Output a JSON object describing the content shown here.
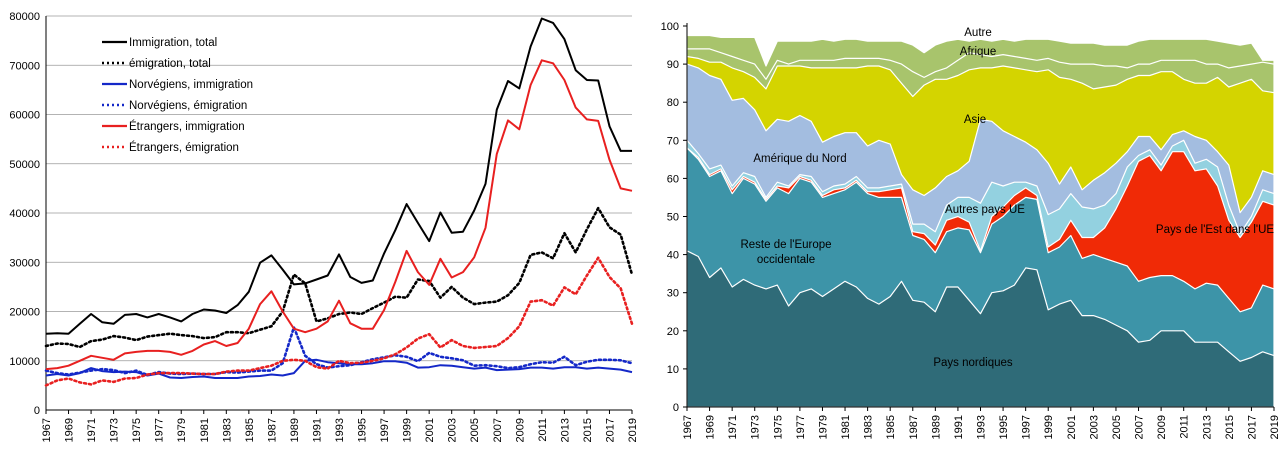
{
  "chart_data": [
    {
      "type": "line",
      "x": [
        1967,
        1968,
        1969,
        1970,
        1971,
        1972,
        1973,
        1974,
        1975,
        1976,
        1977,
        1978,
        1979,
        1980,
        1981,
        1982,
        1983,
        1984,
        1985,
        1986,
        1987,
        1988,
        1989,
        1990,
        1991,
        1992,
        1993,
        1994,
        1995,
        1996,
        1997,
        1998,
        1999,
        2000,
        2001,
        2002,
        2003,
        2004,
        2005,
        2006,
        2007,
        2008,
        2009,
        2010,
        2011,
        2012,
        2013,
        2014,
        2015,
        2016,
        2017,
        2018,
        2019
      ],
      "xticks": [
        "1967",
        "1969",
        "1971",
        "1973",
        "1975",
        "1977",
        "1979",
        "1981",
        "1983",
        "1985",
        "1987",
        "1989",
        "1991",
        "1993",
        "1995",
        "1997",
        "1999",
        "2001",
        "2003",
        "2005",
        "2007",
        "2009",
        "2011",
        "2013",
        "2015",
        "2017",
        "2019"
      ],
      "ylim": [
        0,
        80000
      ],
      "yticks": [
        "0",
        "10000",
        "20000",
        "30000",
        "40000",
        "50000",
        "60000",
        "70000",
        "80000"
      ],
      "grid": "horizontal",
      "legend_position": "top-left",
      "series": [
        {
          "name": "Immigration, total",
          "color": "#000000",
          "style": "solid",
          "values": [
            15500,
            15600,
            15500,
            17500,
            19500,
            17800,
            17500,
            19300,
            19500,
            18800,
            19500,
            18800,
            18000,
            19500,
            20400,
            20200,
            19700,
            21300,
            24000,
            29900,
            31400,
            28500,
            25500,
            25700,
            26500,
            27300,
            31600,
            27000,
            25800,
            26300,
            31800,
            36500,
            41800,
            38000,
            34300,
            40100,
            36000,
            36200,
            40500,
            45900,
            61000,
            66800,
            65300,
            73800,
            79500,
            78600,
            75300,
            69000,
            67000,
            66900,
            57600,
            52600,
            52600
          ]
        },
        {
          "name": "émigration, total",
          "color": "#000000",
          "style": "dotted",
          "values": [
            13000,
            13500,
            13400,
            12800,
            14000,
            14300,
            15000,
            14700,
            14200,
            14900,
            15200,
            15500,
            15200,
            15000,
            14600,
            14800,
            15800,
            15800,
            15600,
            16300,
            17000,
            20000,
            27500,
            25700,
            18000,
            18600,
            19500,
            19800,
            19500,
            20700,
            21800,
            23000,
            22800,
            26500,
            26200,
            22800,
            25000,
            22800,
            21500,
            21800,
            22000,
            23300,
            25800,
            31500,
            32000,
            30800,
            35900,
            32000,
            36700,
            41000,
            37100,
            35600,
            27500
          ]
        },
        {
          "name": "Norvégiens, immigration",
          "color": "#1428c8",
          "style": "solid",
          "values": [
            7000,
            7300,
            7000,
            7500,
            8500,
            7900,
            7700,
            7800,
            7700,
            7000,
            7400,
            6600,
            6500,
            6700,
            6800,
            6500,
            6500,
            6500,
            6800,
            6900,
            7200,
            7000,
            7500,
            10000,
            10200,
            9700,
            9500,
            9300,
            9300,
            9500,
            9900,
            9900,
            9600,
            8600,
            8700,
            9100,
            9000,
            8700,
            8400,
            8600,
            8100,
            8200,
            8300,
            8600,
            8600,
            8400,
            8700,
            8700,
            8400,
            8600,
            8400,
            8200,
            7700
          ]
        },
        {
          "name": "Norvégiens, émigration",
          "color": "#1428c8",
          "style": "dotted",
          "values": [
            8000,
            7500,
            7200,
            7600,
            8000,
            8300,
            8100,
            7500,
            8000,
            7100,
            7700,
            7400,
            7300,
            7400,
            7300,
            7300,
            7700,
            7600,
            7800,
            8000,
            8000,
            9500,
            16800,
            11000,
            9300,
            8600,
            8900,
            9100,
            9700,
            10300,
            10700,
            11100,
            10800,
            9900,
            11600,
            10800,
            10500,
            10100,
            9000,
            9100,
            8900,
            8500,
            8700,
            9300,
            9700,
            9600,
            10800,
            9100,
            9800,
            10200,
            10200,
            10100,
            9500
          ]
        },
        {
          "name": "Étrangers, immigration",
          "color": "#e82020",
          "style": "solid",
          "values": [
            8300,
            8500,
            9000,
            10000,
            11000,
            10600,
            10200,
            11500,
            11800,
            12000,
            12000,
            11800,
            11200,
            12000,
            13300,
            14000,
            13000,
            13600,
            16500,
            21500,
            24100,
            20000,
            16500,
            15800,
            16500,
            18000,
            22200,
            17600,
            16500,
            16500,
            20300,
            26000,
            32300,
            28000,
            25400,
            30700,
            26900,
            28000,
            31000,
            37000,
            52000,
            58800,
            57000,
            66000,
            71000,
            70400,
            67000,
            61400,
            59000,
            58700,
            50800,
            45000,
            44500
          ]
        },
        {
          "name": "Étrangers, émigration",
          "color": "#e82020",
          "style": "dotted",
          "values": [
            5000,
            6000,
            6400,
            5600,
            5200,
            6000,
            5700,
            6400,
            6500,
            7200,
            7500,
            7500,
            7500,
            7400,
            7300,
            7300,
            7800,
            8000,
            8000,
            8500,
            9000,
            10000,
            10200,
            10000,
            8700,
            8400,
            10000,
            9500,
            9600,
            10000,
            10500,
            11300,
            12700,
            14500,
            15400,
            12700,
            14200,
            13000,
            12600,
            12800,
            13000,
            14600,
            17000,
            22000,
            22300,
            21200,
            24900,
            23500,
            27300,
            30900,
            27000,
            24700,
            17500
          ]
        }
      ]
    },
    {
      "type": "area",
      "x": [
        1967,
        1968,
        1969,
        1970,
        1971,
        1972,
        1973,
        1974,
        1975,
        1976,
        1977,
        1978,
        1979,
        1980,
        1981,
        1982,
        1983,
        1984,
        1985,
        1986,
        1987,
        1988,
        1989,
        1990,
        1991,
        1992,
        1993,
        1994,
        1995,
        1996,
        1997,
        1998,
        1999,
        2000,
        2001,
        2002,
        2003,
        2004,
        2005,
        2006,
        2007,
        2008,
        2009,
        2010,
        2011,
        2012,
        2013,
        2014,
        2015,
        2016,
        2017,
        2018,
        2019
      ],
      "xticks": [
        "1967",
        "1969",
        "1971",
        "1973",
        "1975",
        "1977",
        "1979",
        "1981",
        "1983",
        "1985",
        "1987",
        "1989",
        "1991",
        "1993",
        "1995",
        "1997",
        "1999",
        "2001",
        "2003",
        "2005",
        "2007",
        "2009",
        "2011",
        "2013",
        "2015",
        "2017",
        "2019"
      ],
      "ylim": [
        0,
        100
      ],
      "yticks": [
        "0",
        "10",
        "20",
        "30",
        "40",
        "50",
        "60",
        "70",
        "80",
        "90",
        "100"
      ],
      "grid": "off",
      "stacking": "cumulative",
      "series": [
        {
          "name": "Pays nordiques",
          "color": "#2f6b78",
          "values": [
            41,
            39.5,
            34,
            36.5,
            31.5,
            33.5,
            32,
            31,
            32,
            26.5,
            30,
            31,
            29,
            31,
            33,
            31.5,
            28.5,
            27,
            29,
            33,
            28,
            27.5,
            25,
            31.5,
            31.5,
            28,
            24.5,
            30,
            30.5,
            32,
            36.5,
            36,
            25.5,
            27,
            28,
            24,
            24,
            23,
            21.5,
            20,
            17,
            17.5,
            20,
            20,
            20,
            17,
            17,
            17,
            14.5,
            12,
            13,
            14.5,
            13.5
          ]
        },
        {
          "name": "Reste de l'Europe occidentale",
          "color": "#3d94a8",
          "values": [
            68,
            65,
            60.5,
            62,
            56,
            60,
            58.5,
            54,
            57.5,
            56,
            60,
            59,
            55,
            56,
            57,
            59,
            56,
            55,
            55,
            55,
            45,
            44,
            40.5,
            46,
            47,
            46.5,
            40.5,
            48,
            50,
            53,
            55,
            54.5,
            40.5,
            42,
            45,
            39,
            40,
            39,
            38,
            37,
            33,
            34,
            34.5,
            34.5,
            33,
            31,
            32.5,
            32,
            28.5,
            25,
            26,
            32,
            31
          ]
        },
        {
          "name": "Pays de l'Est dans l'UE",
          "color": "#f02a06",
          "values": [
            68,
            65.5,
            61,
            62.5,
            57,
            60.5,
            59,
            54.5,
            58,
            57.5,
            60.5,
            59.5,
            55.5,
            57,
            57.5,
            59.5,
            56.5,
            56.5,
            57,
            57.5,
            46,
            45.5,
            42.5,
            49,
            50,
            48.5,
            41,
            50,
            52.5,
            55.5,
            57.5,
            55.5,
            42,
            44,
            49,
            44.5,
            44.5,
            47,
            52,
            58,
            64.5,
            66,
            62,
            67,
            67,
            62,
            62.5,
            58,
            49,
            44.5,
            48.5,
            54,
            53
          ]
        },
        {
          "name": "Autres pays UE",
          "color": "#93d1e0",
          "values": [
            70,
            66.5,
            62.5,
            63.5,
            58,
            61.5,
            60.5,
            55,
            59,
            58,
            61,
            60.5,
            56.5,
            58,
            58.5,
            60.5,
            57.5,
            57.5,
            58,
            58.5,
            48,
            48,
            46,
            53,
            55,
            55,
            53.5,
            59,
            58,
            59,
            59,
            58,
            50.5,
            52,
            56,
            52.5,
            52,
            53,
            56,
            63,
            66,
            67.5,
            63.5,
            68.5,
            70,
            64,
            65,
            63,
            53,
            45.5,
            50,
            57,
            56
          ]
        },
        {
          "name": "Amérique du Nord",
          "color": "#a3bde0",
          "values": [
            90,
            89,
            87,
            86,
            80.5,
            81,
            78,
            72.5,
            75.5,
            75,
            76.5,
            75,
            69.5,
            71,
            72,
            72,
            68.5,
            70,
            69,
            61,
            57,
            55.5,
            57.5,
            60.5,
            62,
            64.5,
            75.5,
            75,
            72.5,
            71,
            69.5,
            67.5,
            64,
            58.5,
            63,
            57,
            59.5,
            61.5,
            64,
            67,
            71,
            71,
            67.5,
            71.5,
            72.5,
            71,
            70,
            67,
            63.5,
            51,
            55,
            62,
            61
          ]
        },
        {
          "name": "Asie",
          "color": "#d4d400",
          "values": [
            92,
            91.5,
            90.5,
            90.5,
            89,
            88,
            86.5,
            83.5,
            89.5,
            89.5,
            89.5,
            89,
            89,
            89,
            89,
            89,
            89.5,
            89.5,
            88.5,
            85,
            81.5,
            84.5,
            86,
            86,
            87,
            88.5,
            89,
            89,
            89.5,
            89,
            88.5,
            88,
            88.5,
            86.5,
            86,
            85,
            83.5,
            84,
            84.5,
            86,
            87,
            87,
            88,
            88,
            86,
            85,
            85,
            86.5,
            84,
            85,
            86,
            83,
            82.5
          ]
        },
        {
          "name": "Afrique",
          "color": "#a8c46c",
          "values": [
            94,
            94,
            94,
            93,
            92,
            91,
            90,
            86,
            91,
            90,
            91,
            91,
            91,
            91,
            91.5,
            91.5,
            91.5,
            91.5,
            91,
            90,
            88,
            86.5,
            88,
            89,
            91,
            93,
            92.5,
            92,
            92.5,
            92,
            91.5,
            91,
            91.5,
            90.5,
            90,
            90,
            90,
            89.5,
            89.5,
            89,
            90,
            90,
            91,
            91,
            91,
            91,
            90,
            90,
            89,
            89.5,
            90,
            90.5,
            90
          ]
        },
        {
          "name": "Autre",
          "color": "#a8c46c",
          "values": [
            97.5,
            97.5,
            97.5,
            97,
            97,
            97,
            97,
            89.5,
            96,
            96,
            96,
            96,
            96.5,
            96,
            96.5,
            96.5,
            96,
            96,
            96,
            96,
            95,
            93,
            95,
            96,
            96.5,
            96,
            96.5,
            96,
            96.5,
            96,
            96.5,
            96.5,
            96.5,
            96,
            95.5,
            95.5,
            95.5,
            95,
            95,
            95,
            96,
            96.5,
            96.5,
            96.5,
            96.5,
            96.5,
            96.5,
            96,
            95.5,
            95,
            95.5,
            91,
            91
          ]
        }
      ],
      "annotations": [
        "Autre",
        "Afrique",
        "Asie",
        "Amérique du Nord",
        "Autres pays UE",
        "Reste de l'Europe",
        "occidentale",
        "Pays de l'Est dans l'UE",
        "Pays nordiques"
      ]
    }
  ]
}
